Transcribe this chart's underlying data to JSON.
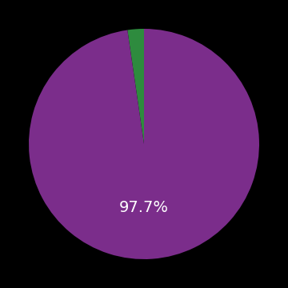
{
  "slices": [
    2.3,
    97.7
  ],
  "colors": [
    "#2e8b3e",
    "#7b2d8b"
  ],
  "label_text": "97.7%",
  "label_color": "#ffffff",
  "label_fontsize": 14,
  "background_color": "#000000",
  "startangle": 90,
  "figsize": [
    3.6,
    3.6
  ],
  "dpi": 100
}
